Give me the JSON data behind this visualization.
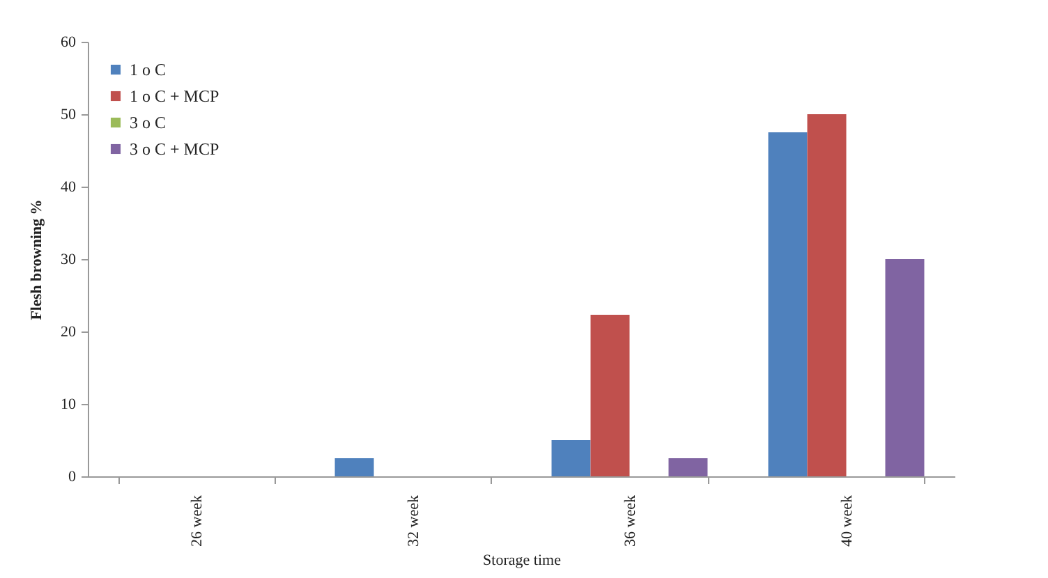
{
  "chart_data": {
    "type": "bar",
    "xlabel": "Storage time",
    "ylabel": "Flesh browning   %",
    "categories": [
      "26 week",
      "32 week",
      "36 week",
      "40 week"
    ],
    "series": [
      {
        "name": "1 o C",
        "color": "#4f81bd",
        "values": [
          0,
          2.5,
          5,
          47.5
        ]
      },
      {
        "name": "1 o C + MCP",
        "color": "#c0504d",
        "values": [
          0,
          0,
          22.3,
          50
        ]
      },
      {
        "name": "3 o C",
        "color": "#9bbb59",
        "values": [
          0,
          0,
          0,
          0
        ]
      },
      {
        "name": "3 o C + MCP",
        "color": "#8064a2",
        "values": [
          0,
          0,
          2.5,
          30
        ]
      }
    ],
    "ylim": [
      0,
      60
    ],
    "yticks": [
      0,
      10,
      20,
      30,
      40,
      50,
      60
    ],
    "grid": false,
    "legend": "top left"
  }
}
